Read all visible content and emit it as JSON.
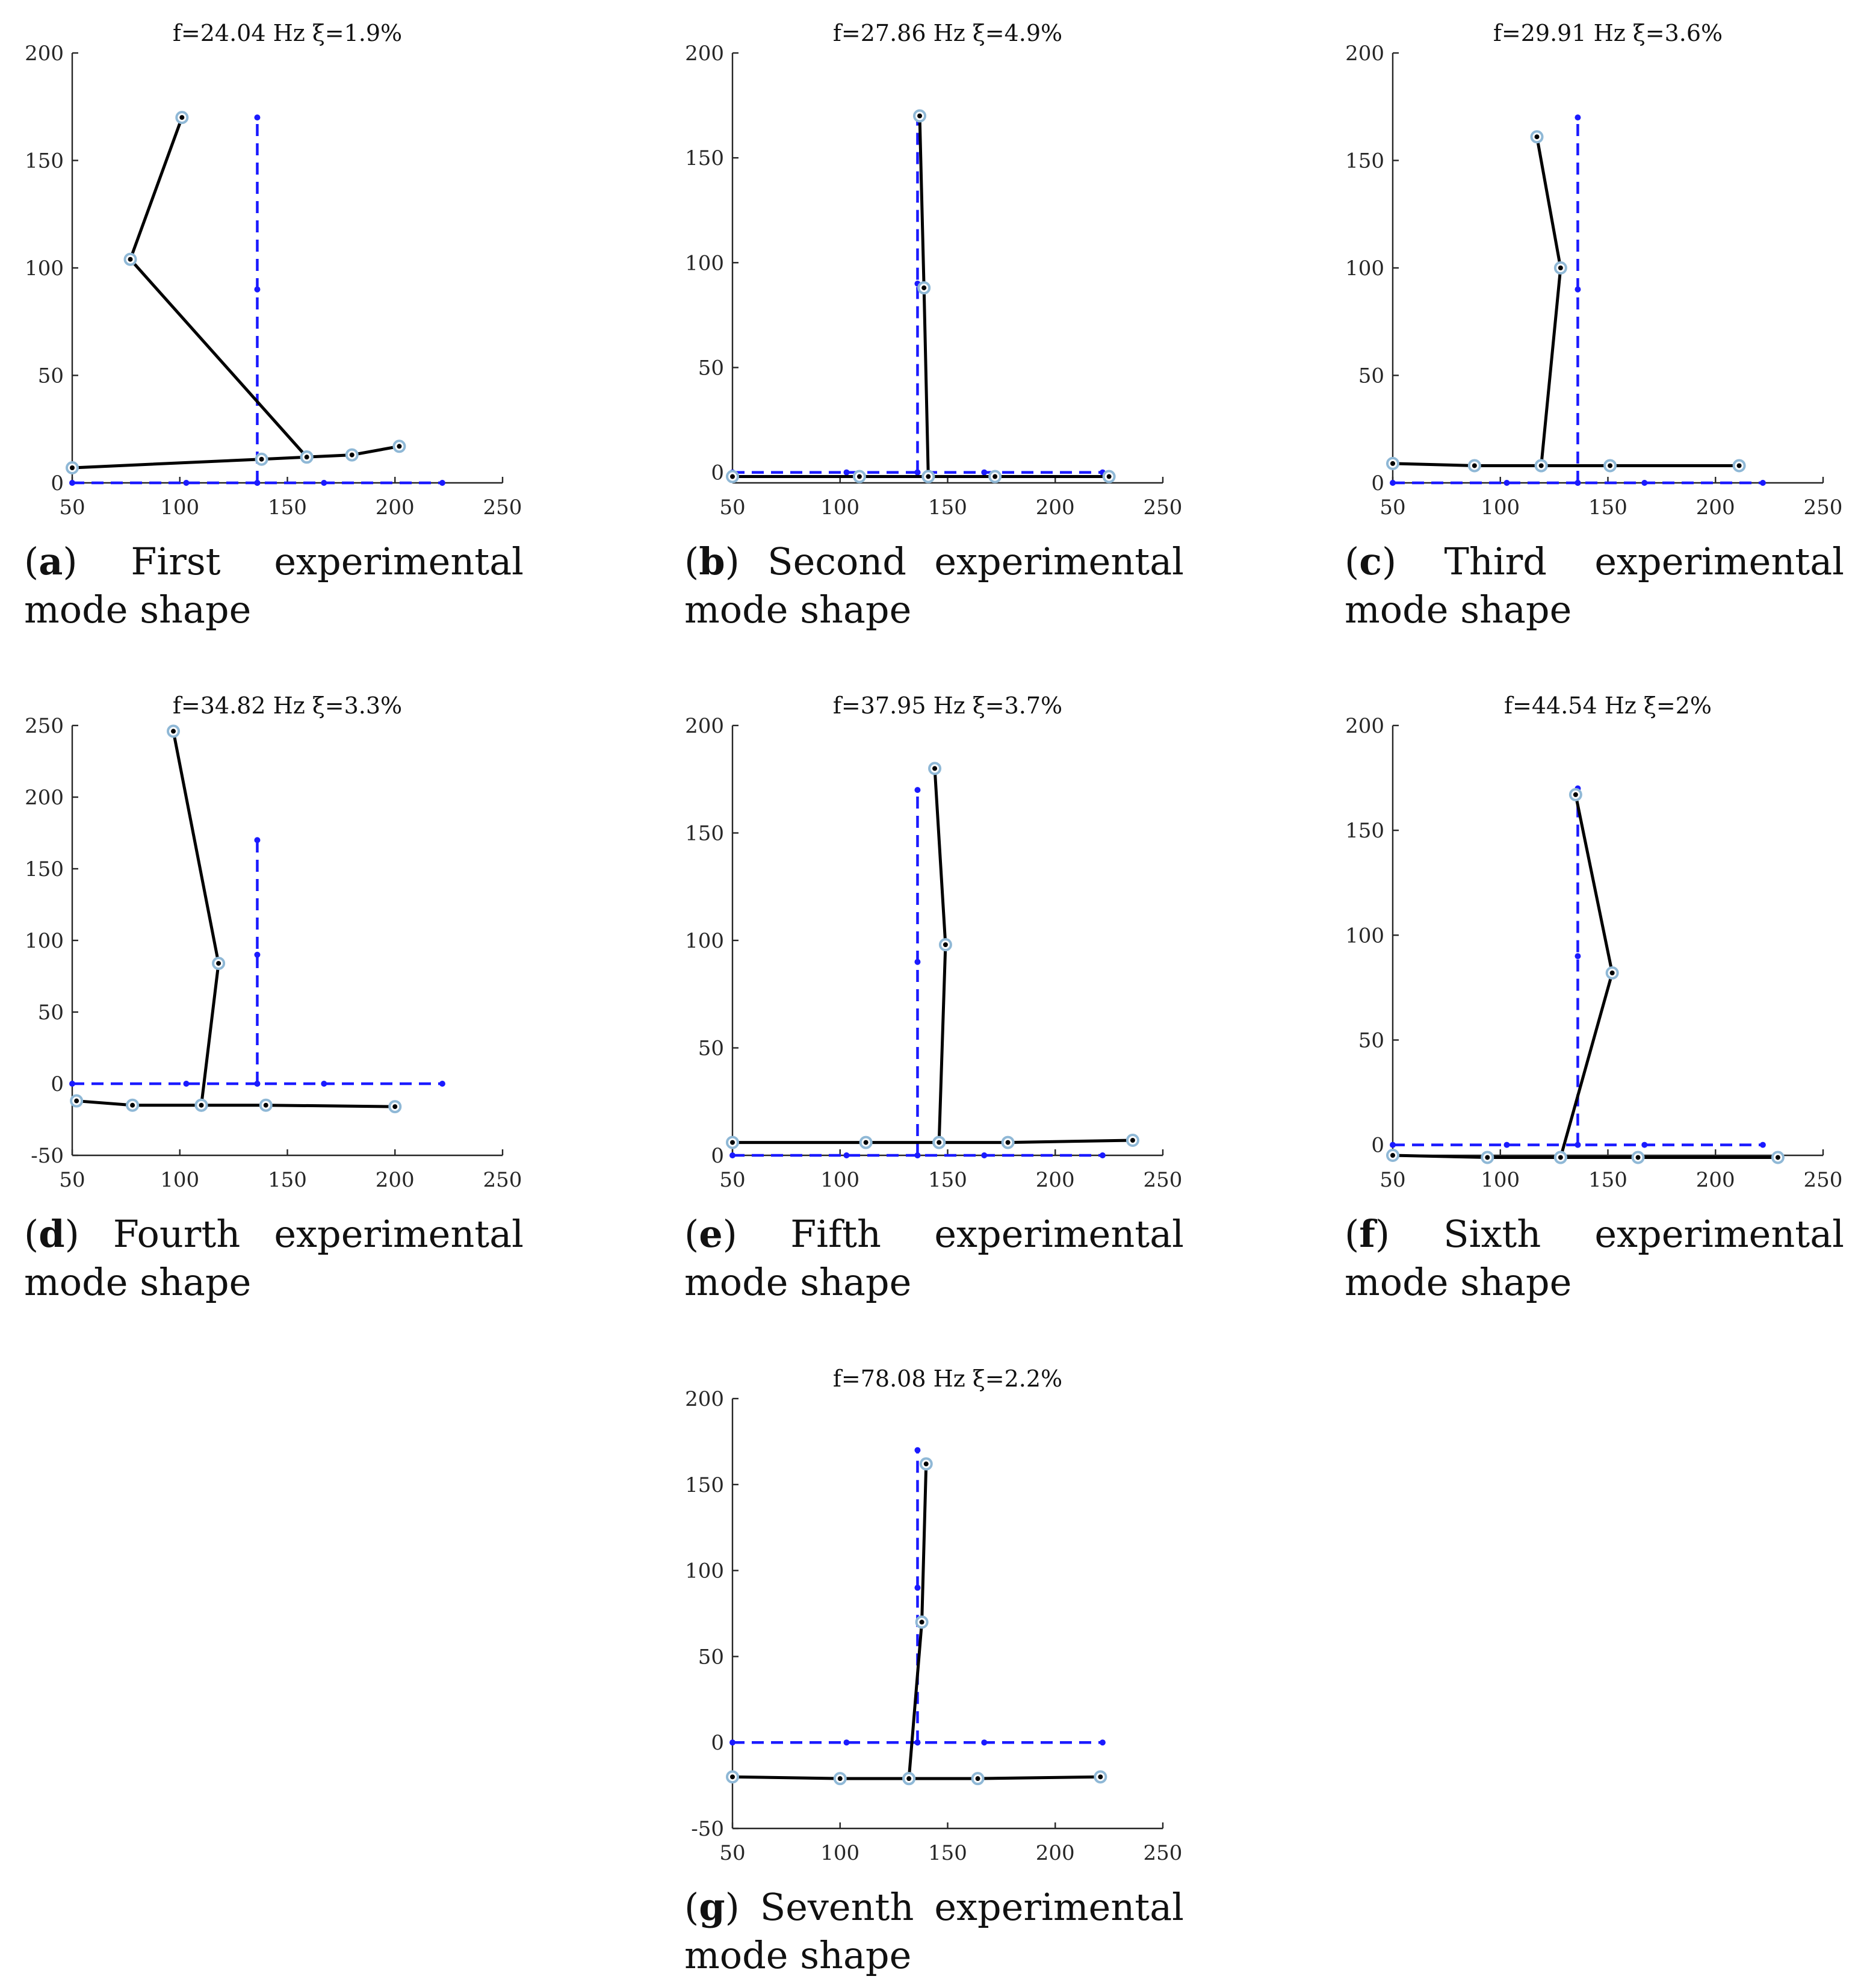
{
  "colors": {
    "reference": "#1a1aff",
    "mode": "#000000",
    "marker": "#8fb8d6"
  },
  "undeformed": {
    "horizontal": [
      [
        50,
        0
      ],
      [
        103,
        0
      ],
      [
        136,
        0
      ],
      [
        167,
        0
      ],
      [
        222,
        0
      ]
    ],
    "vertical": [
      [
        136,
        0
      ],
      [
        136,
        90
      ],
      [
        136,
        170
      ]
    ]
  },
  "chart_data": [
    {
      "id": "a",
      "type": "line",
      "title": "f=24.04 Hz   ξ=1.9%",
      "caption_letter": "a",
      "caption_text": "First experimental mode shape",
      "xlim": [
        50,
        250
      ],
      "ylim": [
        0,
        200
      ],
      "xticks": [
        50,
        100,
        150,
        200,
        250
      ],
      "yticks": [
        0,
        50,
        100,
        150,
        200
      ],
      "series": [
        {
          "name": "horizontal",
          "x": [
            50,
            138,
            159,
            180,
            202
          ],
          "y": [
            7,
            11,
            12,
            13,
            17
          ]
        },
        {
          "name": "vertical",
          "x": [
            159,
            77,
            101
          ],
          "y": [
            12,
            104,
            170
          ]
        }
      ]
    },
    {
      "id": "b",
      "type": "line",
      "title": "f=27.86 Hz   ξ=4.9%",
      "caption_letter": "b",
      "caption_text": "Second experimental mode shape",
      "xlim": [
        50,
        250
      ],
      "ylim": [
        -5,
        200
      ],
      "xticks": [
        50,
        100,
        150,
        200,
        250
      ],
      "yticks": [
        0,
        50,
        100,
        150,
        200
      ],
      "series": [
        {
          "name": "horizontal",
          "x": [
            50,
            109,
            141,
            172,
            225
          ],
          "y": [
            -2,
            -2,
            -2,
            -2,
            -2
          ]
        },
        {
          "name": "vertical",
          "x": [
            141,
            139,
            137
          ],
          "y": [
            -2,
            88,
            170
          ]
        }
      ]
    },
    {
      "id": "c",
      "type": "line",
      "title": "f=29.91 Hz   ξ=3.6%",
      "caption_letter": "c",
      "caption_text": "Third experimental mode shape",
      "xlim": [
        50,
        250
      ],
      "ylim": [
        0,
        200
      ],
      "xticks": [
        50,
        100,
        150,
        200,
        250
      ],
      "yticks": [
        0,
        50,
        100,
        150,
        200
      ],
      "series": [
        {
          "name": "horizontal",
          "x": [
            50,
            88,
            119,
            151,
            211
          ],
          "y": [
            9,
            8,
            8,
            8,
            8
          ]
        },
        {
          "name": "vertical",
          "x": [
            119,
            128,
            117
          ],
          "y": [
            8,
            100,
            161
          ]
        }
      ]
    },
    {
      "id": "d",
      "type": "line",
      "title": "f=34.82 Hz   ξ=3.3%",
      "caption_letter": "d",
      "caption_text": "Fourth experimental mode shape",
      "xlim": [
        50,
        250
      ],
      "ylim": [
        -50,
        250
      ],
      "xticks": [
        50,
        100,
        150,
        200,
        250
      ],
      "yticks": [
        -50,
        0,
        50,
        100,
        150,
        200,
        250
      ],
      "series": [
        {
          "name": "horizontal",
          "x": [
            52,
            78,
            110,
            140,
            200
          ],
          "y": [
            -12,
            -15,
            -15,
            -15,
            -16
          ]
        },
        {
          "name": "vertical",
          "x": [
            110,
            118,
            97
          ],
          "y": [
            -15,
            84,
            246
          ]
        }
      ]
    },
    {
      "id": "e",
      "type": "line",
      "title": "f=37.95 Hz   ξ=3.7%",
      "caption_letter": "e",
      "caption_text": "Fifth experimental mode shape",
      "xlim": [
        50,
        250
      ],
      "ylim": [
        0,
        200
      ],
      "xticks": [
        50,
        100,
        150,
        200,
        250
      ],
      "yticks": [
        0,
        50,
        100,
        150,
        200
      ],
      "series": [
        {
          "name": "horizontal",
          "x": [
            50,
            112,
            146,
            178,
            236
          ],
          "y": [
            6,
            6,
            6,
            6,
            7
          ]
        },
        {
          "name": "vertical",
          "x": [
            146,
            149,
            144
          ],
          "y": [
            6,
            98,
            180
          ]
        }
      ]
    },
    {
      "id": "f",
      "type": "line",
      "title": "f=44.54 Hz   ξ=2%",
      "caption_letter": "f",
      "caption_text": "Sixth experimental mode shape",
      "xlim": [
        50,
        250
      ],
      "ylim": [
        -5,
        200
      ],
      "xticks": [
        50,
        100,
        150,
        200,
        250
      ],
      "yticks": [
        0,
        50,
        100,
        150,
        200
      ],
      "series": [
        {
          "name": "horizontal",
          "x": [
            50,
            94,
            128,
            164,
            229
          ],
          "y": [
            -5,
            -6,
            -6,
            -6,
            -6
          ]
        },
        {
          "name": "vertical",
          "x": [
            128,
            152,
            135
          ],
          "y": [
            -6,
            82,
            167
          ]
        }
      ]
    },
    {
      "id": "g",
      "type": "line",
      "title": "f=78.08 Hz   ξ=2.2%",
      "caption_letter": "g",
      "caption_text": "Seventh experimental mode shape",
      "xlim": [
        50,
        250
      ],
      "ylim": [
        -50,
        200
      ],
      "xticks": [
        50,
        100,
        150,
        200,
        250
      ],
      "yticks": [
        -50,
        0,
        50,
        100,
        150,
        200
      ],
      "series": [
        {
          "name": "horizontal",
          "x": [
            50,
            100,
            132,
            164,
            221
          ],
          "y": [
            -20,
            -21,
            -21,
            -21,
            -20
          ]
        },
        {
          "name": "vertical",
          "x": [
            132,
            138,
            140
          ],
          "y": [
            -21,
            70,
            162
          ]
        }
      ]
    }
  ]
}
